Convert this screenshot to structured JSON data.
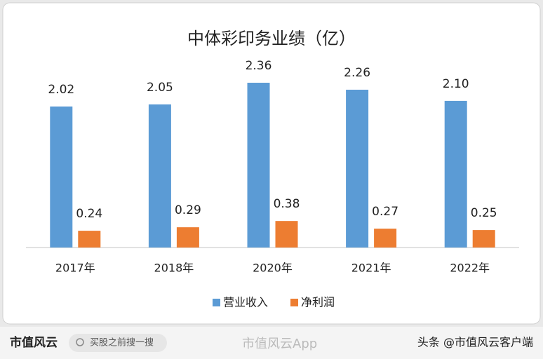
{
  "chart_data": {
    "type": "bar",
    "title": "中体彩印务业绩（亿）",
    "categories": [
      "2017年",
      "2018年",
      "2020年",
      "2021年",
      "2022年"
    ],
    "series": [
      {
        "name": "营业收入",
        "color": "#5b9bd5",
        "values": [
          2.02,
          2.05,
          2.36,
          2.26,
          2.1
        ],
        "value_labels": [
          "2.02",
          "2.05",
          "2.36",
          "2.26",
          "2.10"
        ]
      },
      {
        "name": "净利润",
        "color": "#ed7d31",
        "values": [
          0.24,
          0.29,
          0.38,
          0.27,
          0.25
        ],
        "value_labels": [
          "0.24",
          "0.29",
          "0.38",
          "0.27",
          "0.25"
        ]
      }
    ],
    "legend": "bottom"
  },
  "footer": {
    "brand": "市值风云",
    "search": "买股之前搜一搜",
    "app": "市值风云App",
    "source": "头条 @市值风云客户端"
  }
}
